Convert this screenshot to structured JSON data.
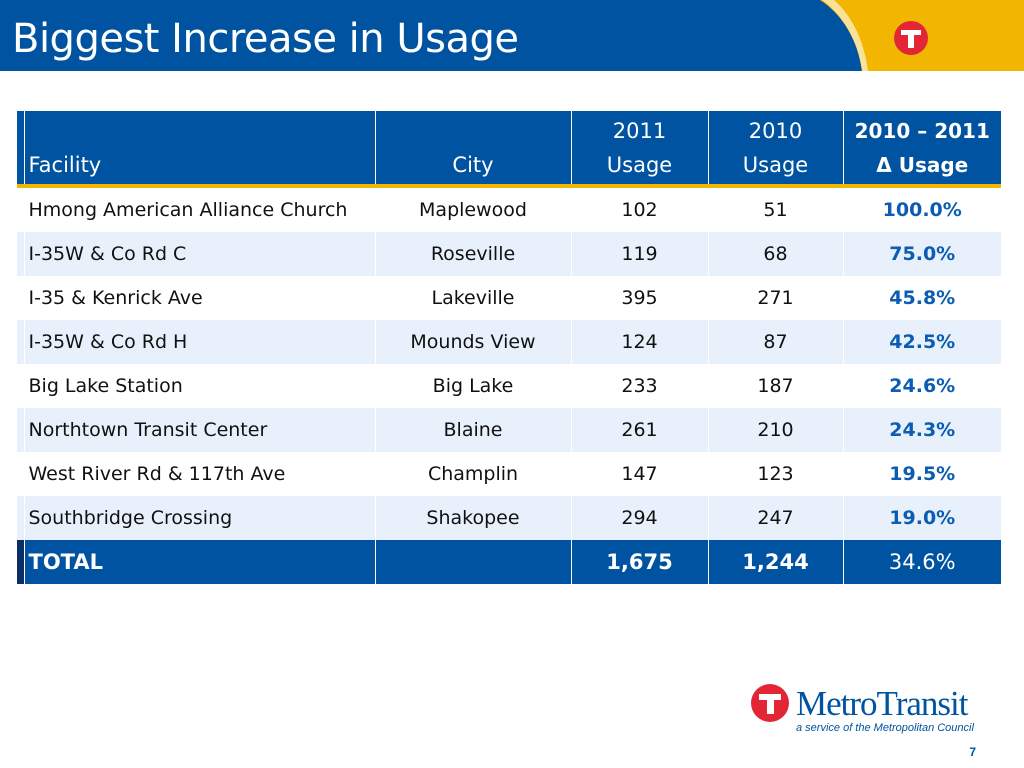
{
  "slide": {
    "title": "Biggest Increase in Usage",
    "page_number": "7"
  },
  "colors": {
    "header_blue": "#0053A0",
    "accent_yellow": "#F2B600",
    "stripe_navy": "#0B2E66",
    "alt_row": "#E8F1FB",
    "change_text": "#0B5CB3",
    "logo_red": "#E32636"
  },
  "table": {
    "columns": {
      "facility": "Facility",
      "city": "City",
      "usage_2011": [
        "2011",
        "Usage"
      ],
      "usage_2010": [
        "2010",
        "Usage"
      ],
      "change": [
        "2010 – 2011",
        "Δ Usage"
      ]
    },
    "rows": [
      {
        "facility": "Hmong American Alliance Church",
        "city": "Maplewood",
        "usage_2011": "102",
        "usage_2010": "51",
        "change": "100.0%"
      },
      {
        "facility": "I-35W & Co Rd C",
        "city": "Roseville",
        "usage_2011": "119",
        "usage_2010": "68",
        "change": "75.0%"
      },
      {
        "facility": "I-35 & Kenrick Ave",
        "city": "Lakeville",
        "usage_2011": "395",
        "usage_2010": "271",
        "change": "45.8%"
      },
      {
        "facility": "I-35W & Co Rd H",
        "city": "Mounds View",
        "usage_2011": "124",
        "usage_2010": "87",
        "change": "42.5%"
      },
      {
        "facility": "Big Lake Station",
        "city": "Big Lake",
        "usage_2011": "233",
        "usage_2010": "187",
        "change": "24.6%"
      },
      {
        "facility": "Northtown Transit Center",
        "city": "Blaine",
        "usage_2011": "261",
        "usage_2010": "210",
        "change": "24.3%"
      },
      {
        "facility": "West River Rd & 117th Ave",
        "city": "Champlin",
        "usage_2011": "147",
        "usage_2010": "123",
        "change": "19.5%"
      },
      {
        "facility": "Southbridge Crossing",
        "city": "Shakopee",
        "usage_2011": "294",
        "usage_2010": "247",
        "change": "19.0%"
      }
    ],
    "total": {
      "label": "TOTAL",
      "city": "",
      "usage_2011": "1,675",
      "usage_2010": "1,244",
      "change": "34.6%"
    }
  },
  "logo": {
    "name_part1": "Metro",
    "name_part2": "Transit",
    "tagline": "a service of the Metropolitan Council",
    "icon": "metro-transit-t-icon"
  }
}
